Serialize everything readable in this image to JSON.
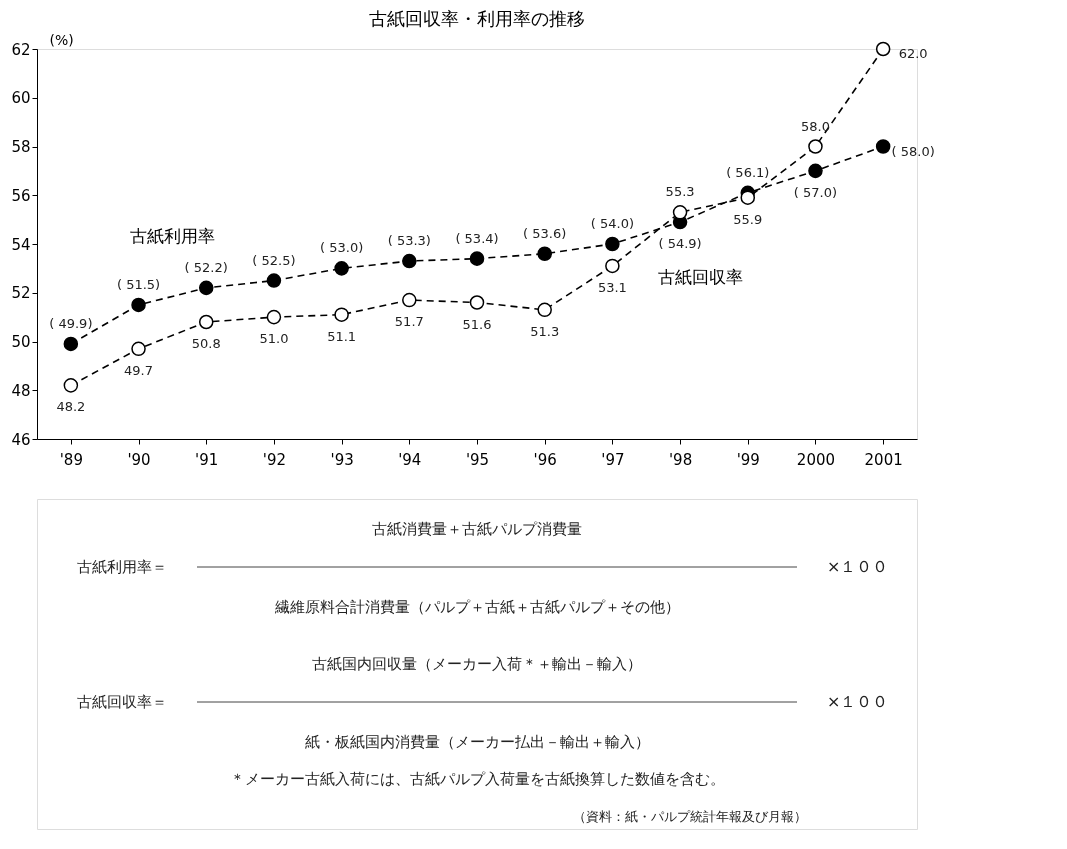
{
  "chart_data": {
    "type": "line",
    "title": "古紙回収率・利用率の推移",
    "ylabel": "(%)",
    "categories": [
      "'89",
      "'90",
      "'91",
      "'92",
      "'93",
      "'94",
      "'95",
      "'96",
      "'97",
      "'98",
      "'99",
      "2000",
      "2001"
    ],
    "series": [
      {
        "name": "古紙利用率",
        "color": "#000000",
        "values": [
          49.9,
          51.5,
          52.2,
          52.5,
          53.0,
          53.3,
          53.4,
          53.6,
          54.0,
          54.9,
          56.1,
          57.0,
          58.0
        ],
        "value_labels": [
          "( 49.9)",
          "( 51.5)",
          "( 52.2)",
          "( 52.5)",
          "( 53.0)",
          "( 53.3)",
          "( 53.4)",
          "( 53.6)",
          "( 54.0)",
          "( 54.9)",
          "( 56.1)",
          "( 57.0)",
          "( 58.0)"
        ]
      },
      {
        "name": "古紙回収率",
        "color": "#000000",
        "values": [
          48.2,
          49.7,
          50.8,
          51.0,
          51.1,
          51.7,
          51.6,
          51.3,
          53.1,
          55.3,
          55.9,
          58.0,
          62.0
        ],
        "value_labels": [
          "48.2",
          "49.7",
          "50.8",
          "51.0",
          "51.1",
          "51.7",
          "51.6",
          "51.3",
          "53.1",
          "55.3",
          "55.9",
          "58.0",
          "62.0"
        ]
      }
    ],
    "ylim": [
      46,
      62
    ],
    "yticks": [
      46,
      48,
      50,
      52,
      54,
      56,
      58,
      60,
      62
    ],
    "marker": "circle",
    "line_style": "dashed",
    "grid": false,
    "legend": false,
    "annotations": [
      "古紙消費量＋古紙パルプ消費量",
      "古紙利用率＝",
      "×１００",
      "繊維原料合計消費量（パルプ＋古紙＋古紙パルプ＋その他）",
      "古紙国内回収量（メーカー入荷＊＋輸出－輸入）",
      "古紙回収率＝",
      "×１００",
      "紙・板紙国内消費量（メーカー払出－輸出＋輸入）",
      "＊メーカー古紙入荷には、古紙パルプ入荷量を古紙換算した数値を含む。",
      "（資料：紙・パルプ統計年報及び月報）"
    ]
  }
}
